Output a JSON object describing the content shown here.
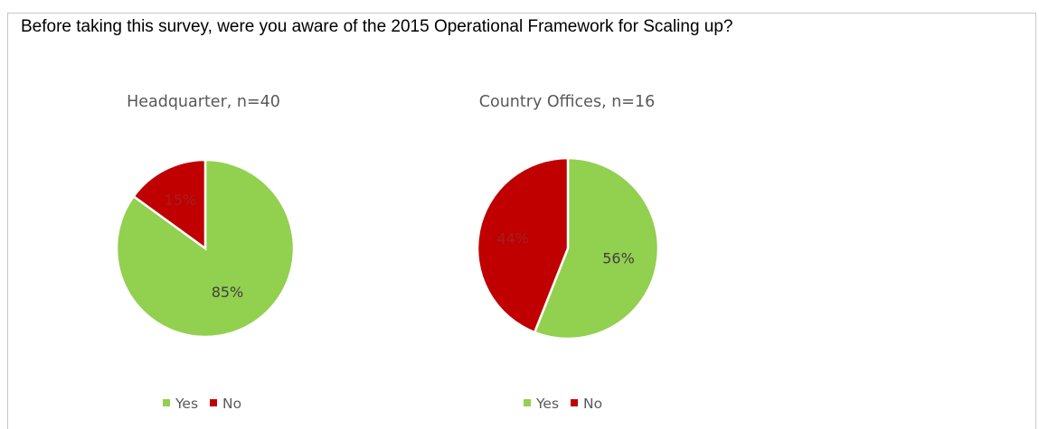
{
  "question": "Before taking this survey, were you aware of the 2015 Operational Framework for Scaling up?",
  "colors": {
    "yes": "#92d050",
    "no": "#c00000"
  },
  "chart_data": [
    {
      "type": "pie",
      "title": "Headquarter, n=40",
      "categories": [
        "Yes",
        "No"
      ],
      "values": [
        85,
        15
      ],
      "labels": [
        "85%",
        "15%"
      ],
      "legend": [
        "Yes",
        "No"
      ],
      "legend_position": "bottom"
    },
    {
      "type": "pie",
      "title": "Country Offices, n=16",
      "categories": [
        "Yes",
        "No"
      ],
      "values": [
        56,
        44
      ],
      "labels": [
        "56%",
        "44%"
      ],
      "legend": [
        "Yes",
        "No"
      ],
      "legend_position": "bottom"
    }
  ]
}
